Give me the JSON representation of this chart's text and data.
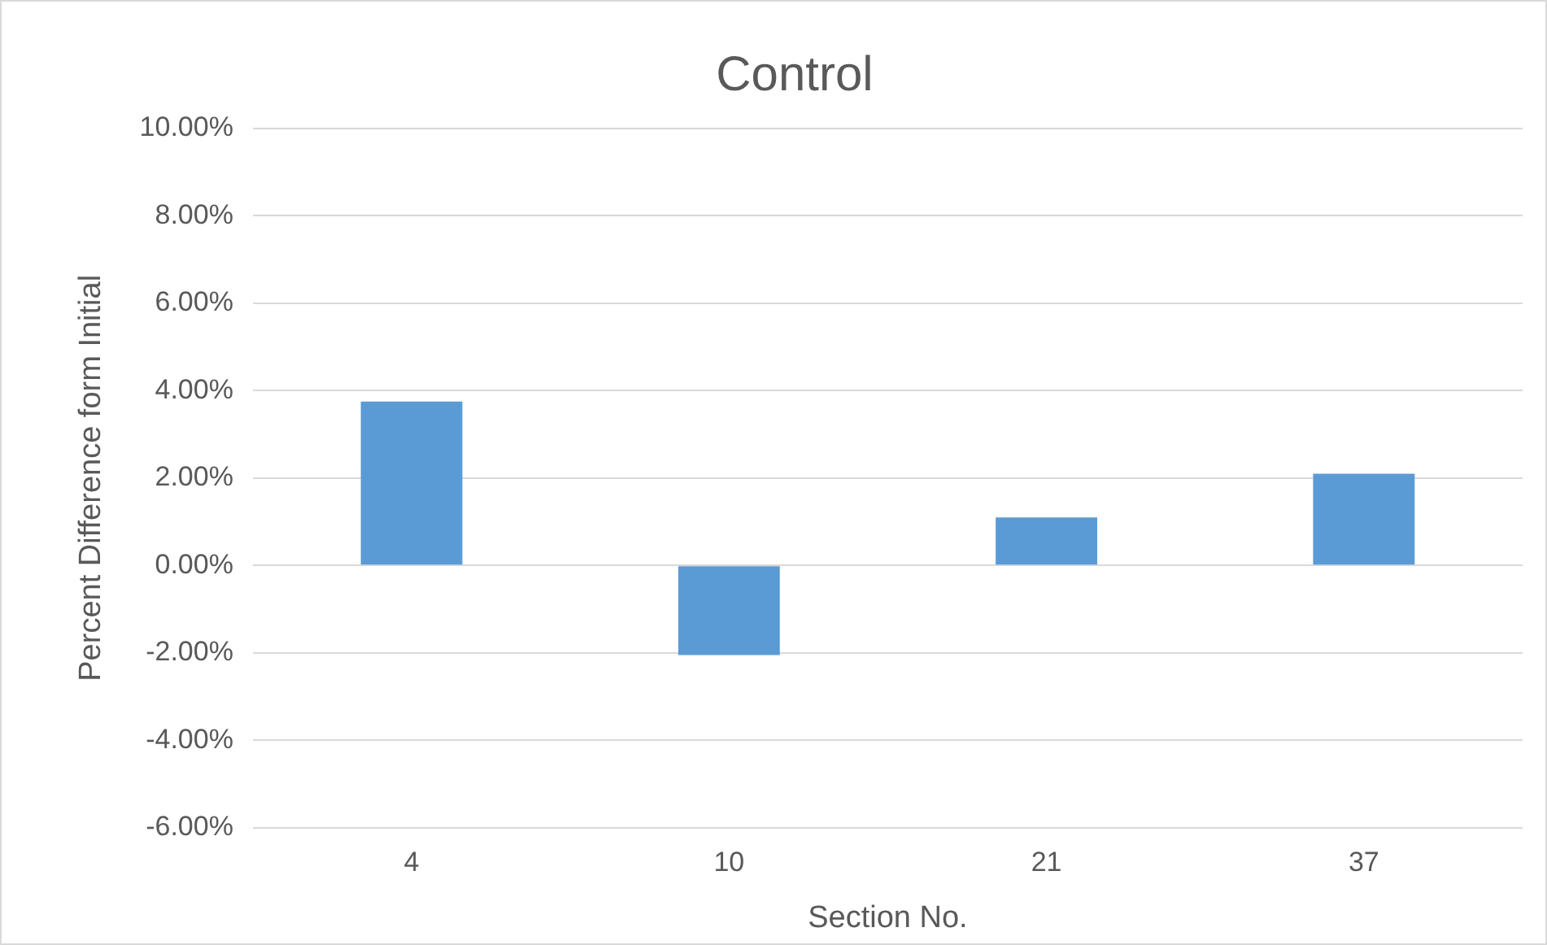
{
  "chart_data": {
    "type": "bar",
    "title": "Control",
    "xlabel": "Section No.",
    "ylabel": "Percent Difference form Initial",
    "categories": [
      "4",
      "10",
      "21",
      "37"
    ],
    "values": [
      3.75,
      -2.05,
      1.1,
      2.1
    ],
    "color": "#5b9bd5",
    "ylim": [
      -6,
      10
    ],
    "yticks": [
      {
        "value": -6,
        "label": "-6.00%"
      },
      {
        "value": -4,
        "label": "-4.00%"
      },
      {
        "value": -2,
        "label": "-2.00%"
      },
      {
        "value": 0,
        "label": "0.00%"
      },
      {
        "value": 2,
        "label": "2.00%"
      },
      {
        "value": 4,
        "label": "4.00%"
      },
      {
        "value": 6,
        "label": "6.00%"
      },
      {
        "value": 8,
        "label": "8.00%"
      },
      {
        "value": 10,
        "label": "10.00%"
      }
    ],
    "grid": "y"
  }
}
